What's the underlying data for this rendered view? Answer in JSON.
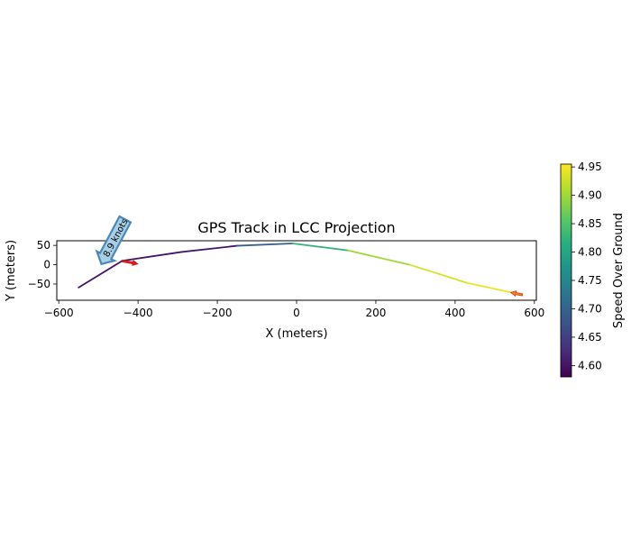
{
  "chart_data": {
    "type": "line",
    "title": "GPS Track in LCC Projection",
    "xlabel": "X (meters)",
    "ylabel": "Y (meters)",
    "xlim": [
      -605,
      605
    ],
    "ylim": [
      -92,
      62
    ],
    "x_ticks": [
      -600,
      -400,
      -200,
      0,
      200,
      400,
      600
    ],
    "x_tick_labels": [
      "−600",
      "−400",
      "−200",
      "0",
      "200",
      "400",
      "600"
    ],
    "y_ticks": [
      -50,
      0,
      50
    ],
    "y_tick_labels": [
      "−50",
      "0",
      "50"
    ],
    "grid": false,
    "track": {
      "x": [
        -550,
        -440,
        -290,
        -150,
        -10,
        130,
        285,
        430,
        570
      ],
      "y": [
        -59,
        10,
        33,
        49,
        55,
        37,
        0,
        -47,
        -78
      ],
      "speed": [
        4.6,
        4.6,
        4.6,
        4.61,
        4.77,
        4.88,
        4.92,
        4.94,
        4.95
      ]
    },
    "colorbar": {
      "label": "Speed Over Ground",
      "colormap": "viridis",
      "range": [
        4.58,
        4.955
      ],
      "ticks": [
        4.6,
        4.65,
        4.7,
        4.75,
        4.8,
        4.85,
        4.9,
        4.95
      ],
      "tick_labels": [
        "4.60",
        "4.65",
        "4.70",
        "4.75",
        "4.80",
        "4.85",
        "4.90",
        "4.95"
      ]
    },
    "annotations": [
      {
        "text": "8.9 knots",
        "x": -440,
        "y": 10,
        "arrow_color": "#4a89b8",
        "fill": "#a7d0e6"
      }
    ],
    "direction_arrows": [
      {
        "x": -440,
        "y": 10,
        "dx": 40,
        "dy": -8,
        "color": "#e31a1c"
      },
      {
        "x": 570,
        "y": -78,
        "dx": -30,
        "dy": 6,
        "color": "#ff7f0e"
      }
    ]
  }
}
